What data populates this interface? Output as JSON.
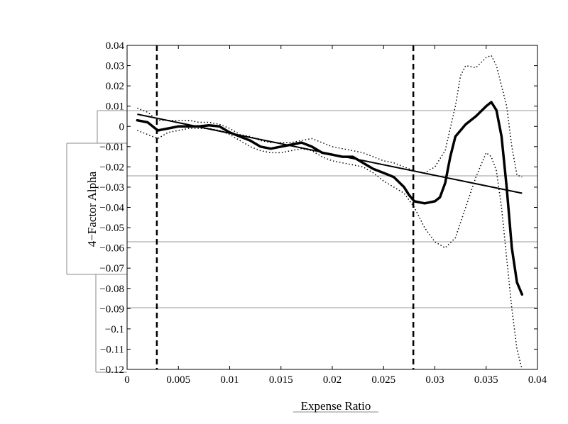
{
  "chart_data": {
    "type": "line",
    "title": "",
    "xlabel": "Expense Ratio",
    "ylabel": "4−Factor Alpha",
    "xlim": [
      0,
      0.04
    ],
    "ylim": [
      -0.12,
      0.04
    ],
    "x_ticks": [
      "0",
      "0.005",
      "0.01",
      "0.015",
      "0.02",
      "0.025",
      "0.03",
      "0.035",
      "0.04"
    ],
    "y_ticks": [
      "0.04",
      "0.03",
      "0.02",
      "0.01",
      "0",
      "−0.01",
      "−0.02",
      "−0.03",
      "−0.04",
      "−0.05",
      "−0.06",
      "−0.07",
      "−0.08",
      "−0.09",
      "−0.1",
      "−0.11",
      "−0.12"
    ],
    "grid": false,
    "legend": "none",
    "vertical_lines": [
      0.0029,
      0.0279
    ],
    "series": [
      {
        "style": "thick-solid",
        "x": [
          0.001,
          0.002,
          0.0025,
          0.003,
          0.004,
          0.005,
          0.006,
          0.007,
          0.008,
          0.009,
          0.01,
          0.011,
          0.012,
          0.013,
          0.014,
          0.015,
          0.016,
          0.017,
          0.018,
          0.019,
          0.02,
          0.021,
          0.022,
          0.023,
          0.024,
          0.025,
          0.026,
          0.027,
          0.0275,
          0.028,
          0.029,
          0.03,
          0.0305,
          0.031,
          0.0315,
          0.032,
          0.033,
          0.034,
          0.035,
          0.0355,
          0.036,
          0.0365,
          0.037,
          0.0375,
          0.038,
          0.0385
        ],
        "y": [
          0.003,
          0.002,
          0.0,
          -0.002,
          -0.001,
          0.0,
          0.0,
          0.0,
          0.0005,
          0.0,
          -0.003,
          -0.005,
          -0.007,
          -0.01,
          -0.011,
          -0.01,
          -0.009,
          -0.008,
          -0.01,
          -0.013,
          -0.014,
          -0.015,
          -0.015,
          -0.018,
          -0.021,
          -0.023,
          -0.025,
          -0.03,
          -0.034,
          -0.037,
          -0.038,
          -0.037,
          -0.035,
          -0.028,
          -0.015,
          -0.005,
          0.001,
          0.005,
          0.01,
          0.012,
          0.008,
          -0.005,
          -0.03,
          -0.06,
          -0.077,
          -0.083
        ]
      },
      {
        "style": "dotted-upper",
        "x": [
          0.001,
          0.002,
          0.003,
          0.004,
          0.005,
          0.006,
          0.007,
          0.008,
          0.009,
          0.01,
          0.011,
          0.012,
          0.013,
          0.014,
          0.015,
          0.016,
          0.017,
          0.018,
          0.019,
          0.02,
          0.021,
          0.022,
          0.023,
          0.024,
          0.025,
          0.026,
          0.027,
          0.028,
          0.029,
          0.03,
          0.031,
          0.032,
          0.0325,
          0.033,
          0.034,
          0.035,
          0.0355,
          0.036,
          0.0365,
          0.037,
          0.0375,
          0.038,
          0.0385
        ],
        "y": [
          0.009,
          0.007,
          0.003,
          0.003,
          0.003,
          0.003,
          0.002,
          0.002,
          0.001,
          -0.001,
          -0.004,
          -0.005,
          -0.007,
          -0.008,
          -0.008,
          -0.008,
          -0.007,
          -0.006,
          -0.008,
          -0.01,
          -0.011,
          -0.012,
          -0.013,
          -0.015,
          -0.017,
          -0.018,
          -0.02,
          -0.022,
          -0.023,
          -0.02,
          -0.012,
          0.01,
          0.025,
          0.03,
          0.029,
          0.034,
          0.035,
          0.03,
          0.02,
          0.01,
          -0.01,
          -0.024,
          -0.025
        ]
      },
      {
        "style": "dotted-lower",
        "x": [
          0.001,
          0.002,
          0.003,
          0.004,
          0.005,
          0.006,
          0.007,
          0.008,
          0.009,
          0.01,
          0.011,
          0.012,
          0.013,
          0.014,
          0.015,
          0.016,
          0.017,
          0.018,
          0.019,
          0.02,
          0.021,
          0.022,
          0.023,
          0.024,
          0.025,
          0.026,
          0.027,
          0.028,
          0.029,
          0.03,
          0.031,
          0.032,
          0.033,
          0.034,
          0.035,
          0.0355,
          0.036,
          0.0365,
          0.037,
          0.0375,
          0.038,
          0.0385
        ],
        "y": [
          -0.002,
          -0.004,
          -0.006,
          -0.003,
          -0.002,
          -0.001,
          -0.001,
          -0.001,
          -0.002,
          -0.004,
          -0.007,
          -0.01,
          -0.012,
          -0.013,
          -0.013,
          -0.012,
          -0.011,
          -0.012,
          -0.015,
          -0.017,
          -0.018,
          -0.019,
          -0.02,
          -0.023,
          -0.027,
          -0.03,
          -0.033,
          -0.04,
          -0.05,
          -0.057,
          -0.06,
          -0.055,
          -0.04,
          -0.025,
          -0.013,
          -0.015,
          -0.022,
          -0.04,
          -0.065,
          -0.09,
          -0.11,
          -0.12
        ]
      },
      {
        "style": "thin-fit",
        "x": [
          0.001,
          0.0385
        ],
        "y": [
          0.006,
          -0.033
        ]
      }
    ]
  }
}
